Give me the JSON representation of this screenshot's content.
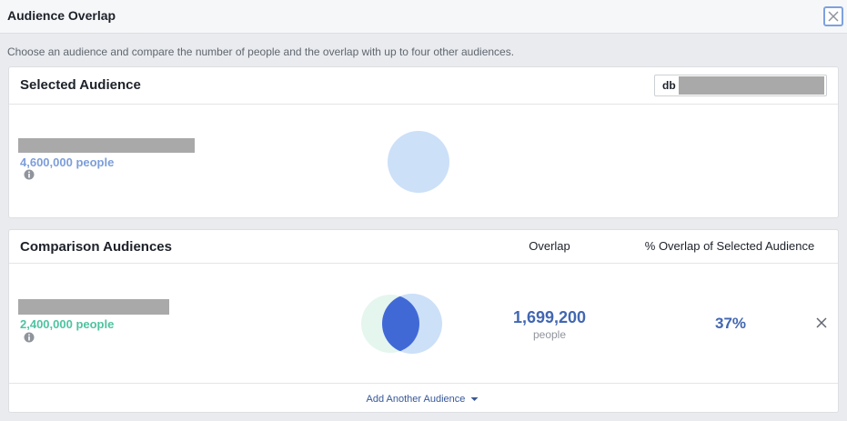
{
  "header": {
    "title": "Audience Overlap",
    "description": "Choose an audience and compare the number of people and the overlap with up to four other audiences."
  },
  "selected": {
    "title": "Selected Audience",
    "search_prefix": "db",
    "size": "4,600,000 people"
  },
  "comparison": {
    "title": "Comparison Audiences",
    "columns": [
      "Overlap",
      "% Overlap of Selected Audience"
    ],
    "rows": [
      {
        "size": "2,400,000 people",
        "overlap": "1,699,200",
        "overlap_unit": "people",
        "percent": "37%"
      }
    ],
    "add_button": "Add Another Audience"
  }
}
